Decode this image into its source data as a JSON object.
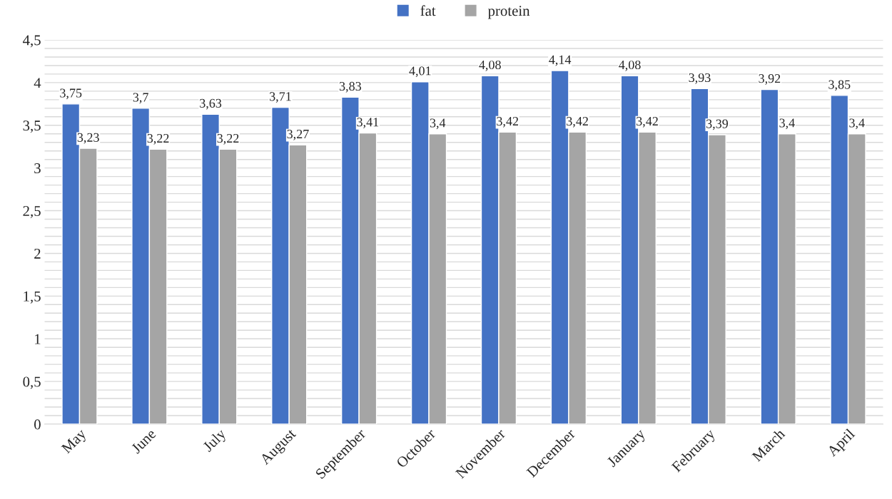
{
  "chart_data": {
    "type": "bar",
    "categories": [
      "May",
      "June",
      "July",
      "August",
      "September",
      "October",
      "November",
      "December",
      "January",
      "February",
      "March",
      "April"
    ],
    "series": [
      {
        "name": "fat",
        "color": "#4472c4",
        "values": [
          3.75,
          3.7,
          3.63,
          3.71,
          3.83,
          4.01,
          4.08,
          4.14,
          4.08,
          3.93,
          3.92,
          3.85
        ],
        "value_labels": [
          "3,75",
          "3,7",
          "3,63",
          "3,71",
          "3,83",
          "4,01",
          "4,08",
          "4,14",
          "4,08",
          "3,93",
          "3,92",
          "3,85"
        ]
      },
      {
        "name": "protein",
        "color": "#a5a5a5",
        "values": [
          3.23,
          3.22,
          3.22,
          3.27,
          3.41,
          3.4,
          3.42,
          3.42,
          3.42,
          3.39,
          3.4,
          3.4
        ],
        "value_labels": [
          "3,23",
          "3,22",
          "3,22",
          "3,27",
          "3,41",
          "3,4",
          "3,42",
          "3,42",
          "3,42",
          "3,39",
          "3,4",
          "3,4"
        ]
      }
    ],
    "ylim": [
      0,
      4.5
    ],
    "yticks": [
      0,
      {
        "value": 0.1,
        "label": null
      },
      {
        "value": 0.2,
        "label": null
      },
      {
        "value": 0.3,
        "label": null
      },
      {
        "value": 0.4,
        "label": null
      },
      {
        "value": 0.5,
        "label": "0,5"
      },
      {
        "value": 0.6,
        "label": null
      },
      {
        "value": 0.7,
        "label": null
      },
      {
        "value": 0.8,
        "label": null
      },
      {
        "value": 0.9,
        "label": null
      },
      1,
      {
        "value": 1.1,
        "label": null
      },
      {
        "value": 1.2,
        "label": null
      },
      {
        "value": 1.3,
        "label": null
      },
      {
        "value": 1.4,
        "label": null
      },
      {
        "value": 1.5,
        "label": "1,5"
      },
      {
        "value": 1.6,
        "label": null
      },
      {
        "value": 1.7,
        "label": null
      },
      {
        "value": 1.8,
        "label": null
      },
      {
        "value": 1.9,
        "label": null
      },
      2,
      {
        "value": 2.1,
        "label": null
      },
      {
        "value": 2.2,
        "label": null
      },
      {
        "value": 2.3,
        "label": null
      },
      {
        "value": 2.4,
        "label": null
      },
      {
        "value": 2.5,
        "label": "2,5"
      },
      {
        "value": 2.6,
        "label": null
      },
      {
        "value": 2.7,
        "label": null
      },
      {
        "value": 2.8,
        "label": null
      },
      {
        "value": 2.9,
        "label": null
      },
      3,
      {
        "value": 3.1,
        "label": null
      },
      {
        "value": 3.2,
        "label": null
      },
      {
        "value": 3.3,
        "label": null
      },
      {
        "value": 3.4,
        "label": null
      },
      {
        "value": 3.5,
        "label": "3,5"
      },
      {
        "value": 3.6,
        "label": null
      },
      {
        "value": 3.7,
        "label": null
      },
      {
        "value": 3.8,
        "label": null
      },
      {
        "value": 3.9,
        "label": null
      },
      4,
      {
        "value": 4.1,
        "label": null
      },
      {
        "value": 4.2,
        "label": null
      },
      {
        "value": 4.3,
        "label": null
      },
      {
        "value": 4.4,
        "label": null
      },
      {
        "value": 4.5,
        "label": "4,5"
      }
    ],
    "grid": "y",
    "legend": "top"
  }
}
